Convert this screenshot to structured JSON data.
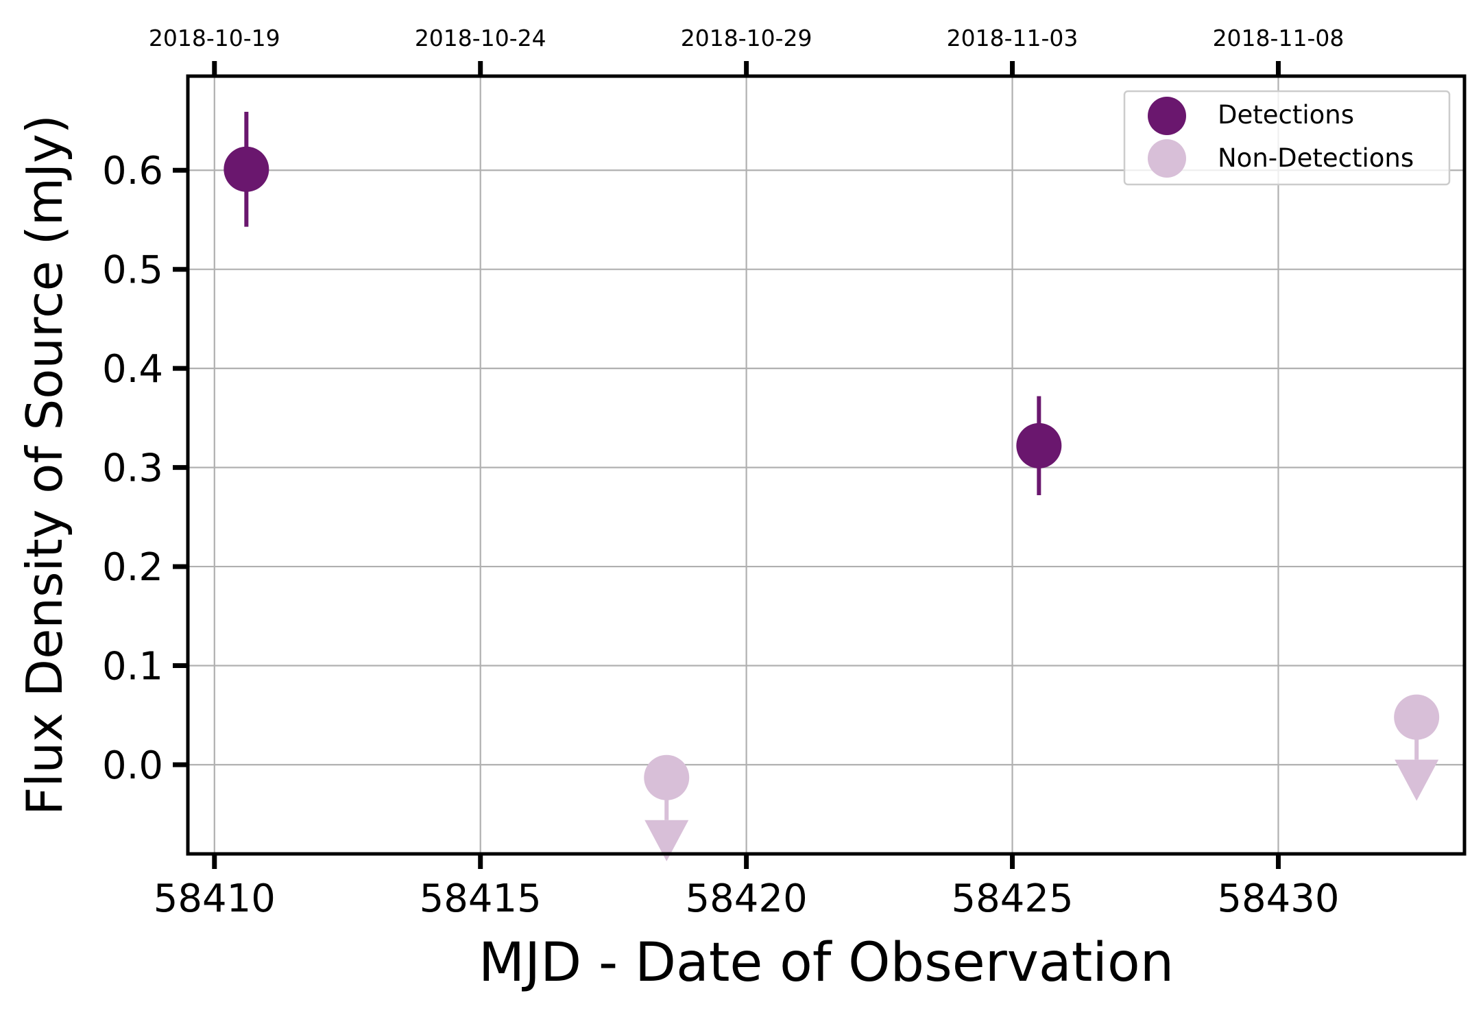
{
  "chart_data": {
    "type": "scatter",
    "xlabel": "MJD - Date of Observation",
    "ylabel": "Flux Density of Source (mJy)",
    "xlim": [
      58409.5,
      58433.5
    ],
    "ylim": [
      -0.09,
      0.695
    ],
    "x_ticks": [
      58410,
      58415,
      58420,
      58425,
      58430
    ],
    "x_tick_labels": [
      "58410",
      "58415",
      "58420",
      "58425",
      "58430"
    ],
    "y_ticks": [
      0.0,
      0.1,
      0.2,
      0.3,
      0.4,
      0.5,
      0.6
    ],
    "y_tick_labels": [
      "0.0",
      "0.1",
      "0.2",
      "0.3",
      "0.4",
      "0.5",
      "0.6"
    ],
    "top_axis": {
      "ticks": [
        58410,
        58415,
        58420,
        58425,
        58430
      ],
      "labels": [
        "2018-10-19",
        "2018-10-24",
        "2018-10-29",
        "2018-11-03",
        "2018-11-08"
      ]
    },
    "grid": true,
    "legend": {
      "placement": "top-right",
      "entries": [
        {
          "label": "Detections",
          "color": "#6a176e"
        },
        {
          "label": "Non-Detections",
          "color": "#d8bfd8"
        }
      ]
    },
    "series": [
      {
        "name": "Detections",
        "color": "#6a176e",
        "points": [
          {
            "x": 58410.6,
            "y": 0.601,
            "yerr": 0.058
          },
          {
            "x": 58425.5,
            "y": 0.322,
            "yerr": 0.05
          }
        ]
      },
      {
        "name": "Non-Detections",
        "color": "#d8bfd8",
        "upper_limit": true,
        "points": [
          {
            "x": 58418.5,
            "y": -0.013
          },
          {
            "x": 58432.6,
            "y": 0.048
          }
        ]
      }
    ]
  }
}
